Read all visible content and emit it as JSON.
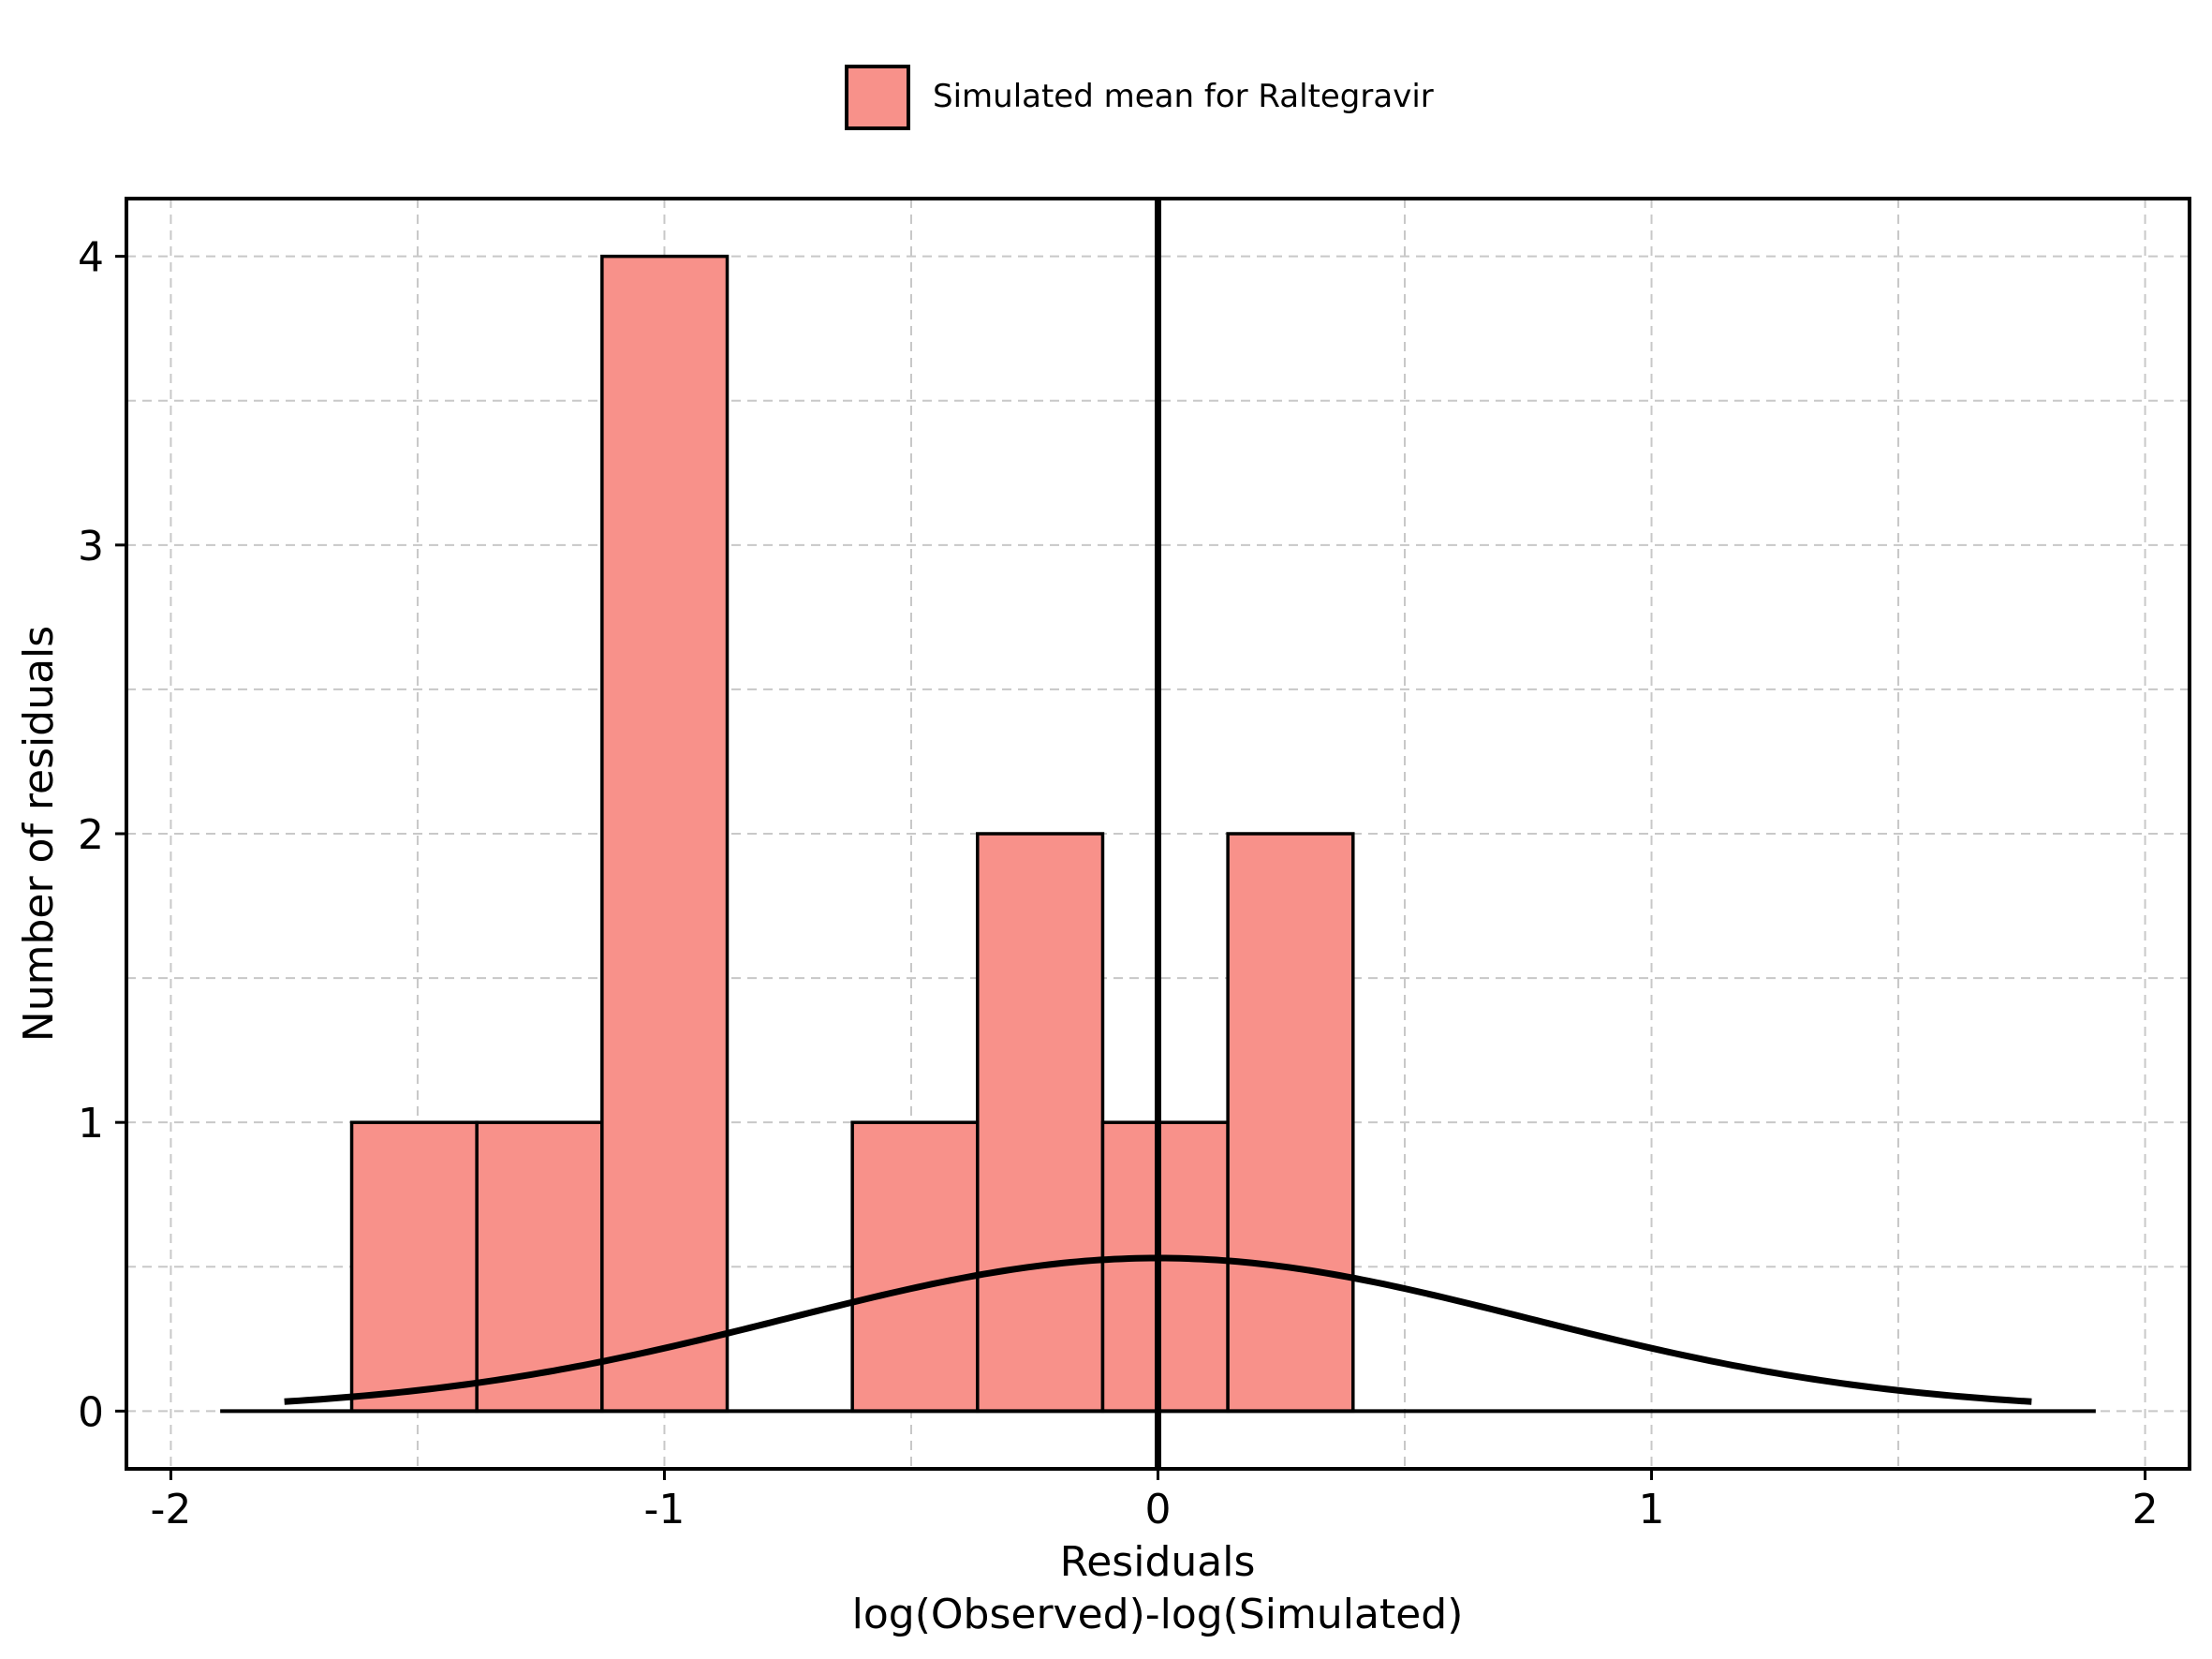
{
  "chart_data": {
    "type": "bar",
    "title": "",
    "xlabel": "Residuals",
    "xlabel2": "log(Observed)-log(Simulated)",
    "ylabel": "Number of residuals",
    "xlim": [
      -2.09,
      2.09
    ],
    "ylim": [
      -0.2,
      4.2
    ],
    "xticks": [
      -2,
      -1,
      0,
      1,
      2
    ],
    "xtick_labels": [
      "-2",
      "-1",
      "0",
      "1",
      "2"
    ],
    "yticks": [
      0,
      1,
      2,
      3,
      4
    ],
    "ytick_labels": [
      "0",
      "1",
      "2",
      "3",
      "4"
    ],
    "grid": true,
    "legend_position": "top-center",
    "series": [
      {
        "name": "Simulated mean for Raltegravir",
        "color": "#f8918a",
        "bin_width": 0.2536,
        "bins": [
          {
            "x0": -1.6336,
            "x1": -1.38,
            "count": 1
          },
          {
            "x0": -1.38,
            "x1": -1.1264,
            "count": 1
          },
          {
            "x0": -1.1264,
            "x1": -0.8728,
            "count": 4
          },
          {
            "x0": -0.8728,
            "x1": -0.6192,
            "count": 0
          },
          {
            "x0": -0.6192,
            "x1": -0.3656,
            "count": 1
          },
          {
            "x0": -0.3656,
            "x1": -0.112,
            "count": 2
          },
          {
            "x0": -0.112,
            "x1": 0.1416,
            "count": 1
          },
          {
            "x0": 0.1416,
            "x1": 0.3952,
            "count": 2
          }
        ]
      }
    ],
    "baseline": {
      "x0": -1.9,
      "x1": 1.9,
      "y": 0
    },
    "zero_line_x": 0,
    "normal_curve": {
      "mean": 0,
      "sd": 0.75,
      "amplitude": 0.53,
      "x_min": -1.77,
      "x_max": 1.77
    }
  }
}
